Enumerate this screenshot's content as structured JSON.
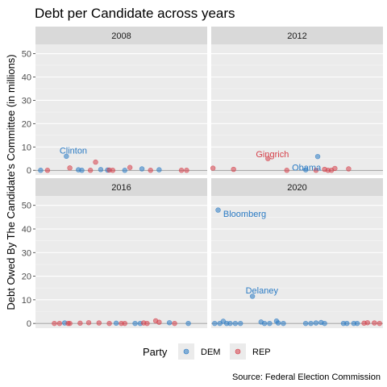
{
  "chart_data": {
    "type": "scatter",
    "title": "Debt per Candidate across years",
    "ylabel": "Debt Owed By The Candidate's Committee (in millions)",
    "xlabel": "",
    "caption": "Source: Federal Election Commission",
    "ylim": [
      -2,
      54
    ],
    "y_ticks": [
      0,
      10,
      20,
      30,
      40,
      50
    ],
    "grid": true,
    "legend": {
      "title": "Party",
      "position": "bottom",
      "entries": [
        {
          "key": "DEM",
          "label": "DEM",
          "color": "#2b7bc4"
        },
        {
          "key": "REP",
          "label": "REP",
          "color": "#d6404a"
        }
      ]
    },
    "panels": [
      {
        "label": "2008",
        "points": [
          {
            "party": "DEM",
            "y": 0.0
          },
          {
            "party": "REP",
            "y": 0.0
          },
          {
            "party": "DEM",
            "y": 6.0
          },
          {
            "party": "REP",
            "y": 1.0
          },
          {
            "party": "DEM",
            "y": 0.2
          },
          {
            "party": "DEM",
            "y": 0.0
          },
          {
            "party": "REP",
            "y": 0.0
          },
          {
            "party": "DEM",
            "y": 0.3
          },
          {
            "party": "REP",
            "y": 3.5
          },
          {
            "party": "DEM",
            "y": 0.1
          },
          {
            "party": "REP",
            "y": 0.1
          },
          {
            "party": "REP",
            "y": 0.0
          },
          {
            "party": "DEM",
            "y": 0.0
          },
          {
            "party": "REP",
            "y": 1.2
          },
          {
            "party": "DEM",
            "y": 0.6
          },
          {
            "party": "REP",
            "y": 0.0
          },
          {
            "party": "DEM",
            "y": 0.2
          },
          {
            "party": "REP",
            "y": 0.0
          },
          {
            "party": "REP",
            "y": 0.0
          }
        ],
        "annotations": [
          {
            "text": "Clinton",
            "y": 8.5,
            "party": "DEM"
          }
        ]
      },
      {
        "label": "2012",
        "points": [
          {
            "party": "REP",
            "y": 0.9
          },
          {
            "party": "REP",
            "y": 0.4
          },
          {
            "party": "REP",
            "y": 5.0
          },
          {
            "party": "REP",
            "y": 0.0
          },
          {
            "party": "DEM",
            "y": 0.2
          },
          {
            "party": "REP",
            "y": 0.0
          },
          {
            "party": "DEM",
            "y": 5.9
          },
          {
            "party": "REP",
            "y": 0.4
          },
          {
            "party": "REP",
            "y": 0.0
          },
          {
            "party": "REP",
            "y": 0.0
          },
          {
            "party": "REP",
            "y": 0.8
          },
          {
            "party": "REP",
            "y": 0.6
          }
        ],
        "annotations": [
          {
            "text": "Gingrich",
            "y": 7.0,
            "party": "REP"
          },
          {
            "text": "Obama",
            "y": 1.2,
            "party": "DEM"
          }
        ]
      },
      {
        "label": "2016",
        "points": [
          {
            "party": "REP",
            "y": 0.0
          },
          {
            "party": "REP",
            "y": 0.0
          },
          {
            "party": "DEM",
            "y": 0.2
          },
          {
            "party": "REP",
            "y": 0.0
          },
          {
            "party": "REP",
            "y": 0.0
          },
          {
            "party": "REP",
            "y": 0.1
          },
          {
            "party": "REP",
            "y": 0.3
          },
          {
            "party": "REP",
            "y": 0.2
          },
          {
            "party": "REP",
            "y": 0.0
          },
          {
            "party": "DEM",
            "y": 0.1
          },
          {
            "party": "REP",
            "y": 0.0
          },
          {
            "party": "REP",
            "y": 0.0
          },
          {
            "party": "DEM",
            "y": 0.0
          },
          {
            "party": "DEM",
            "y": 0.0
          },
          {
            "party": "REP",
            "y": 0.2
          },
          {
            "party": "REP",
            "y": 0.0
          },
          {
            "party": "REP",
            "y": 1.1
          },
          {
            "party": "REP",
            "y": 0.5
          },
          {
            "party": "DEM",
            "y": 0.3
          },
          {
            "party": "REP",
            "y": 0.0
          },
          {
            "party": "DEM",
            "y": 0.0
          }
        ],
        "annotations": []
      },
      {
        "label": "2020",
        "points": [
          {
            "party": "DEM",
            "y": 0.0
          },
          {
            "party": "DEM",
            "y": 48.0
          },
          {
            "party": "DEM",
            "y": 0.0
          },
          {
            "party": "DEM",
            "y": 0.9
          },
          {
            "party": "DEM",
            "y": 0.0
          },
          {
            "party": "DEM",
            "y": 0.0
          },
          {
            "party": "DEM",
            "y": 0.0
          },
          {
            "party": "DEM",
            "y": 0.0
          },
          {
            "party": "DEM",
            "y": 11.5
          },
          {
            "party": "DEM",
            "y": 0.6
          },
          {
            "party": "DEM",
            "y": 0.0
          },
          {
            "party": "DEM",
            "y": 0.0
          },
          {
            "party": "DEM",
            "y": 1.0
          },
          {
            "party": "DEM",
            "y": 0.2
          },
          {
            "party": "DEM",
            "y": 0.0
          },
          {
            "party": "DEM",
            "y": 0.0
          },
          {
            "party": "DEM",
            "y": 0.0
          },
          {
            "party": "DEM",
            "y": 0.2
          },
          {
            "party": "DEM",
            "y": 0.4
          },
          {
            "party": "DEM",
            "y": 0.0
          },
          {
            "party": "DEM",
            "y": 0.0
          },
          {
            "party": "DEM",
            "y": 0.0
          },
          {
            "party": "DEM",
            "y": 0.0
          },
          {
            "party": "DEM",
            "y": 0.0
          },
          {
            "party": "REP",
            "y": 0.1
          },
          {
            "party": "REP",
            "y": 0.3
          },
          {
            "party": "REP",
            "y": 0.2
          },
          {
            "party": "REP",
            "y": 0.0
          }
        ],
        "annotations": [
          {
            "text": "Bloomberg",
            "y": 46.5,
            "party": "DEM"
          },
          {
            "text": "Delaney",
            "y": 14.0,
            "party": "DEM"
          }
        ]
      }
    ]
  }
}
